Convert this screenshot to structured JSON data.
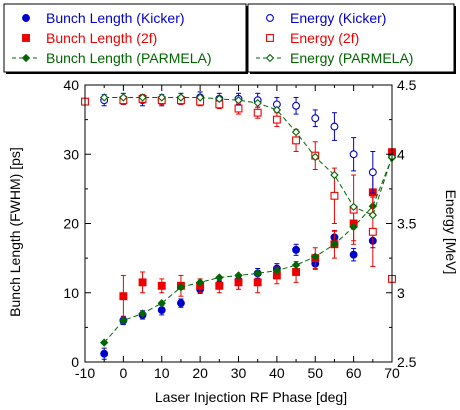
{
  "chart_data": {
    "type": "scatter",
    "xlabel": "Laser Injection RF Phase [deg]",
    "ylabel_left": "Bunch Length (FWHM) [ps]",
    "ylabel_right": "Energy [MeV]",
    "xlim": [
      -10,
      70
    ],
    "ylim_left": [
      0,
      40
    ],
    "ylim_right": [
      2.5,
      4.5
    ],
    "x_ticks": [
      -10,
      0,
      10,
      20,
      30,
      40,
      50,
      60,
      70
    ],
    "y_left_ticks": [
      0,
      10,
      20,
      30,
      40
    ],
    "y_right_ticks": [
      2.5,
      3,
      3.5,
      4,
      4.5
    ],
    "x_tick_labels": [
      "-10",
      "0",
      "10",
      "20",
      "30",
      "40",
      "50",
      "60",
      "70"
    ],
    "y_left_tick_labels": [
      "0",
      "10",
      "20",
      "30",
      "40"
    ],
    "y_right_tick_labels": [
      "2.5",
      "3",
      "3.5",
      "4",
      "4.5"
    ],
    "grid": false,
    "legend_position": "top",
    "colors": {
      "blue": "#0000cc",
      "red": "#ee0000",
      "green": "#006600"
    },
    "series": [
      {
        "name": "Bunch Length (Kicker)",
        "axis": "left",
        "marker": "filled-circle",
        "color": "#0000cc",
        "x": [
          -5,
          0,
          5,
          10,
          15,
          20,
          25,
          30,
          35,
          40,
          45,
          50,
          55,
          60,
          65
        ],
        "y": [
          1.2,
          6.0,
          6.8,
          7.5,
          8.5,
          10.5,
          11.2,
          11.8,
          12.8,
          13.5,
          16.2,
          14.2,
          18.0,
          15.5,
          17.5
        ],
        "err": [
          0.8,
          0.6,
          0.6,
          0.7,
          0.6,
          0.6,
          0.6,
          0.6,
          0.7,
          0.7,
          0.8,
          0.8,
          0.9,
          0.9,
          1.0
        ]
      },
      {
        "name": "Bunch Length (2f)",
        "axis": "left",
        "marker": "filled-square",
        "color": "#ee0000",
        "x": [
          0,
          5,
          10,
          15,
          20,
          25,
          30,
          35,
          40,
          45,
          50,
          55,
          60,
          65,
          70
        ],
        "y": [
          9.5,
          11.5,
          11.0,
          11.0,
          11.0,
          11.0,
          11.5,
          11.5,
          12.5,
          13.0,
          15.0,
          17.0,
          20.0,
          24.5,
          30.3
        ],
        "err": [
          3.0,
          1.5,
          1.0,
          1.5,
          1.0,
          1.0,
          1.0,
          1.5,
          1.2,
          1.5,
          1.5,
          2.0,
          2.5,
          3.0,
          0
        ]
      },
      {
        "name": "Bunch Length (PARMELA)",
        "axis": "left",
        "marker": "filled-diamond",
        "color": "#006600",
        "line": "dash",
        "x": [
          -5,
          0,
          5,
          10,
          15,
          20,
          25,
          30,
          35,
          40,
          45,
          50,
          55,
          60,
          65,
          70
        ],
        "y": [
          2.8,
          6.0,
          7.0,
          8.5,
          10.8,
          11.5,
          12.2,
          12.5,
          12.8,
          13.2,
          14.0,
          15.2,
          17.0,
          19.5,
          22.5,
          29.5
        ]
      },
      {
        "name": "Energy (Kicker)",
        "axis": "right",
        "marker": "open-circle",
        "color": "#0000cc",
        "x": [
          -5,
          0,
          5,
          10,
          15,
          20,
          25,
          30,
          35,
          40,
          45,
          50,
          55,
          60,
          65
        ],
        "y": [
          4.39,
          4.4,
          4.39,
          4.39,
          4.4,
          4.41,
          4.4,
          4.4,
          4.39,
          4.36,
          4.35,
          4.26,
          4.2,
          4.0,
          3.87
        ],
        "err": [
          0.04,
          0.04,
          0.04,
          0.04,
          0.04,
          0.04,
          0.04,
          0.04,
          0.05,
          0.05,
          0.06,
          0.06,
          0.1,
          0.12,
          0.15
        ]
      },
      {
        "name": "Energy (2f)",
        "axis": "right",
        "marker": "open-square",
        "color": "#ee0000",
        "x": [
          -10,
          0,
          5,
          10,
          15,
          20,
          25,
          30,
          35,
          40,
          45,
          50,
          55,
          60,
          65,
          70
        ],
        "y": [
          4.38,
          4.39,
          4.4,
          4.39,
          4.39,
          4.38,
          4.36,
          4.33,
          4.3,
          4.25,
          4.1,
          3.99,
          3.7,
          3.6,
          3.44,
          3.1
        ],
        "err": [
          0,
          0.03,
          0.03,
          0.03,
          0.03,
          0.03,
          0.03,
          0.04,
          0.04,
          0.05,
          0.08,
          0.1,
          0.2,
          0.25,
          0.25,
          0
        ]
      },
      {
        "name": "Energy (PARMELA)",
        "axis": "right",
        "marker": "open-diamond",
        "color": "#006600",
        "line": "dash",
        "x": [
          -5,
          0,
          5,
          10,
          15,
          20,
          25,
          30,
          35,
          40,
          45,
          50,
          55,
          60,
          65,
          70
        ],
        "y": [
          4.41,
          4.41,
          4.41,
          4.41,
          4.41,
          4.41,
          4.4,
          4.39,
          4.37,
          4.32,
          4.16,
          3.98,
          3.85,
          3.62,
          3.56,
          3.98
        ]
      }
    ]
  }
}
